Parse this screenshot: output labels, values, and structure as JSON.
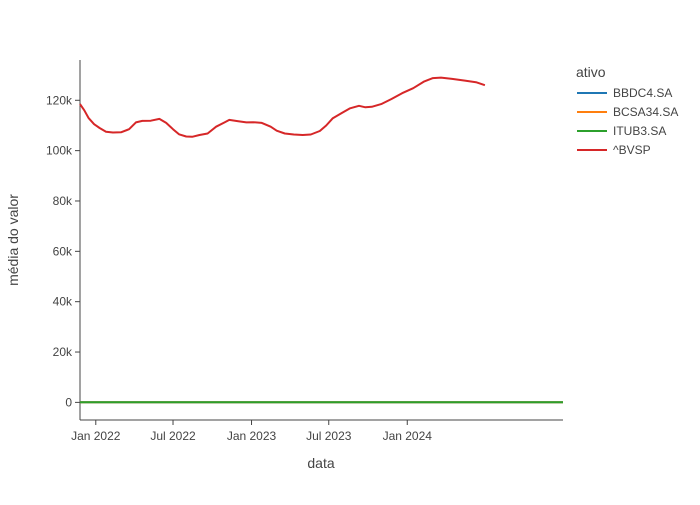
{
  "chart_data": {
    "type": "line",
    "xlabel": "data",
    "ylabel": "média do valor",
    "legend_title": "ativo",
    "legend_position": "right",
    "x_type": "date",
    "xlim": [
      "2021-11-25",
      "2024-12-31"
    ],
    "ylim": [
      -7000,
      136000
    ],
    "grid": false,
    "x_ticks": [
      {
        "value": "2022-01-01",
        "label": "Jan 2022"
      },
      {
        "value": "2022-07-01",
        "label": "Jul 2022"
      },
      {
        "value": "2023-01-01",
        "label": "Jan 2023"
      },
      {
        "value": "2023-07-01",
        "label": "Jul 2023"
      },
      {
        "value": "2024-01-01",
        "label": "Jan 2024"
      }
    ],
    "y_ticks": [
      {
        "value": 0,
        "label": "0"
      },
      {
        "value": 20000,
        "label": "20k"
      },
      {
        "value": 40000,
        "label": "40k"
      },
      {
        "value": 60000,
        "label": "60k"
      },
      {
        "value": 80000,
        "label": "80k"
      },
      {
        "value": 100000,
        "label": "100k"
      },
      {
        "value": 120000,
        "label": "120k"
      }
    ],
    "series": [
      {
        "name": "BBDC4.SA",
        "color": "#1f77b4",
        "points": [
          [
            "2021-11-25",
            16
          ],
          [
            "2024-12-31",
            15
          ]
        ]
      },
      {
        "name": "BCSA34.SA",
        "color": "#ff7f0e",
        "points": [
          [
            "2021-11-25",
            70
          ],
          [
            "2024-12-31",
            70
          ]
        ]
      },
      {
        "name": "ITUB3.SA",
        "color": "#2ca02c",
        "points": [
          [
            "2021-11-25",
            25
          ],
          [
            "2024-12-31",
            30
          ]
        ]
      },
      {
        "name": "^BVSP",
        "color": "#d62728",
        "points": [
          [
            "2021-11-25",
            118500
          ],
          [
            "2021-12-05",
            116000
          ],
          [
            "2021-12-15",
            113000
          ],
          [
            "2021-12-28",
            110500
          ],
          [
            "2022-01-10",
            109000
          ],
          [
            "2022-01-25",
            107500
          ],
          [
            "2022-02-10",
            107200
          ],
          [
            "2022-03-01",
            107300
          ],
          [
            "2022-03-20",
            108500
          ],
          [
            "2022-04-05",
            111200
          ],
          [
            "2022-04-20",
            111800
          ],
          [
            "2022-05-10",
            111900
          ],
          [
            "2022-05-30",
            112600
          ],
          [
            "2022-06-15",
            111000
          ],
          [
            "2022-07-01",
            108500
          ],
          [
            "2022-07-15",
            106500
          ],
          [
            "2022-08-01",
            105600
          ],
          [
            "2022-08-15",
            105500
          ],
          [
            "2022-09-01",
            106200
          ],
          [
            "2022-09-20",
            106800
          ],
          [
            "2022-10-10",
            109500
          ],
          [
            "2022-10-30",
            111200
          ],
          [
            "2022-11-10",
            112200
          ],
          [
            "2022-12-01",
            111700
          ],
          [
            "2022-12-20",
            111200
          ],
          [
            "2023-01-05",
            111300
          ],
          [
            "2023-01-25",
            111000
          ],
          [
            "2023-02-15",
            109500
          ],
          [
            "2023-03-01",
            107900
          ],
          [
            "2023-03-20",
            106800
          ],
          [
            "2023-04-10",
            106400
          ],
          [
            "2023-05-01",
            106200
          ],
          [
            "2023-05-20",
            106400
          ],
          [
            "2023-06-10",
            107800
          ],
          [
            "2023-06-25",
            110000
          ],
          [
            "2023-07-10",
            112800
          ],
          [
            "2023-08-01",
            115000
          ],
          [
            "2023-08-20",
            116800
          ],
          [
            "2023-09-10",
            117800
          ],
          [
            "2023-09-25",
            117200
          ],
          [
            "2023-10-10",
            117400
          ],
          [
            "2023-11-01",
            118500
          ],
          [
            "2023-11-25",
            120500
          ],
          [
            "2023-12-20",
            122800
          ],
          [
            "2024-01-15",
            124800
          ],
          [
            "2024-02-10",
            127500
          ],
          [
            "2024-03-01",
            128800
          ],
          [
            "2024-03-20",
            129000
          ],
          [
            "2024-04-15",
            128500
          ],
          [
            "2024-05-15",
            127800
          ],
          [
            "2024-06-10",
            127200
          ],
          [
            "2024-07-01",
            126000
          ]
        ]
      }
    ]
  }
}
